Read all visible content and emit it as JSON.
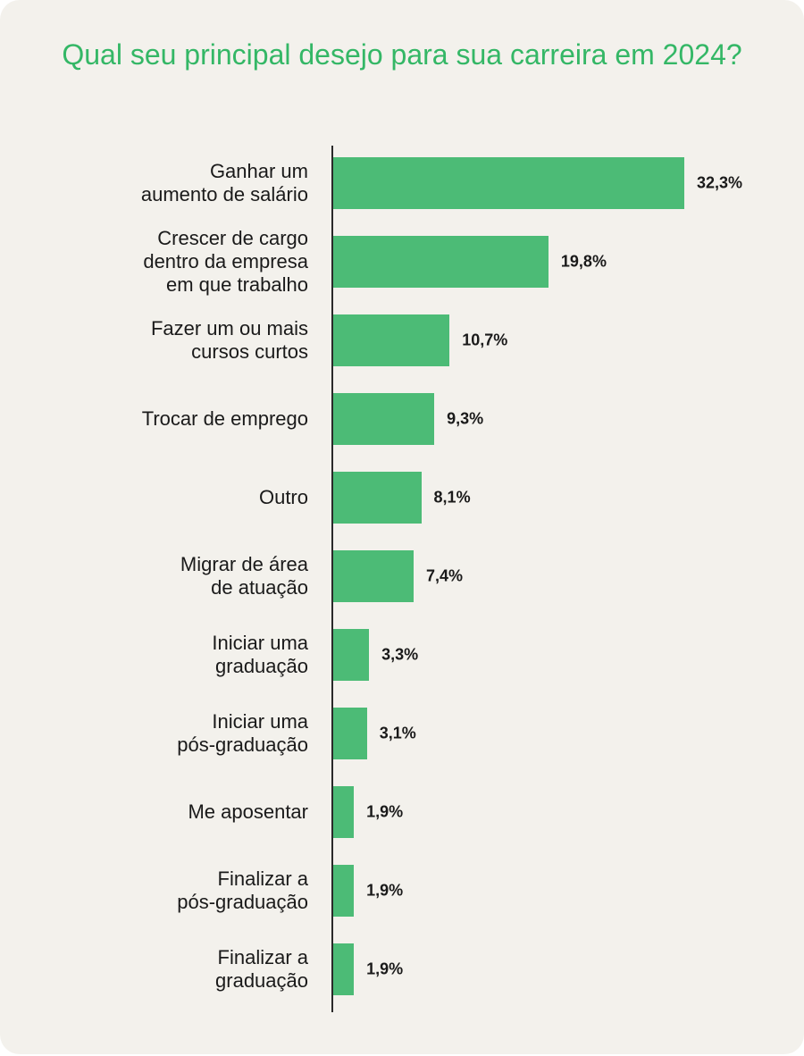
{
  "chart_data": {
    "type": "bar",
    "orientation": "horizontal",
    "title": "Qual seu principal desejo para sua carreira em 2024?",
    "categories": [
      "Ganhar um\naumento de salário",
      "Crescer de cargo\ndentro da empresa\nem que trabalho",
      "Fazer um ou mais\ncursos curtos",
      "Trocar de emprego",
      "Outro",
      "Migrar de área\nde atuação",
      "Iniciar uma\ngraduação",
      "Iniciar uma\npós-graduação",
      "Me aposentar",
      "Finalizar a\npós-graduação",
      "Finalizar a\ngraduação"
    ],
    "values": [
      32.3,
      19.8,
      10.7,
      9.3,
      8.1,
      7.4,
      3.3,
      3.1,
      1.9,
      1.9,
      1.9
    ],
    "value_labels": [
      "32,3%",
      "19,8%",
      "10,7%",
      "9,3%",
      "8,1%",
      "7,4%",
      "3,3%",
      "3,1%",
      "1,9%",
      "1,9%",
      "1,9%"
    ],
    "unit": "%",
    "grid": false,
    "legend": "none",
    "colors": {
      "bar": "#4cbb76",
      "title": "#34b766",
      "background": "#f3f1ec"
    }
  }
}
